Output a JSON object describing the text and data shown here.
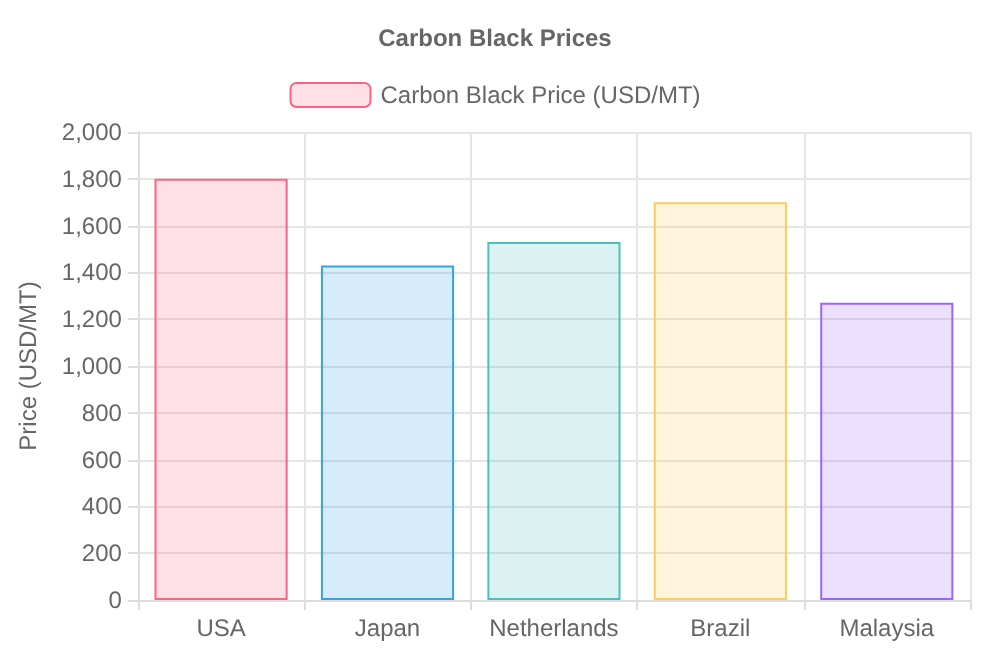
{
  "chart_data": {
    "type": "bar",
    "title": "Carbon Black Prices",
    "ylabel": "Price (USD/MT)",
    "categories": [
      "USA",
      "Japan",
      "Netherlands",
      "Brazil",
      "Malaysia"
    ],
    "series": [
      {
        "name": "Carbon Black Price (USD/MT)",
        "color": "#ff6384",
        "colors": [
          "#ff6384",
          "#36a2eb",
          "#4bc0c0",
          "#ffcd56",
          "#9966ff"
        ],
        "values": [
          1800,
          1430,
          1530,
          1700,
          1270
        ]
      }
    ],
    "ylim": [
      0,
      2000
    ],
    "yticks": [
      0,
      200,
      400,
      600,
      800,
      {
        "value": 1000,
        "label": "1,000"
      },
      {
        "value": 1200,
        "label": "1,200"
      },
      {
        "value": 1400,
        "label": "1,400"
      },
      {
        "value": 1600,
        "label": "1,600"
      },
      {
        "value": 1800,
        "label": "1,800"
      },
      {
        "value": 2000,
        "label": "2,000"
      }
    ],
    "grid": true,
    "legend": "top"
  }
}
